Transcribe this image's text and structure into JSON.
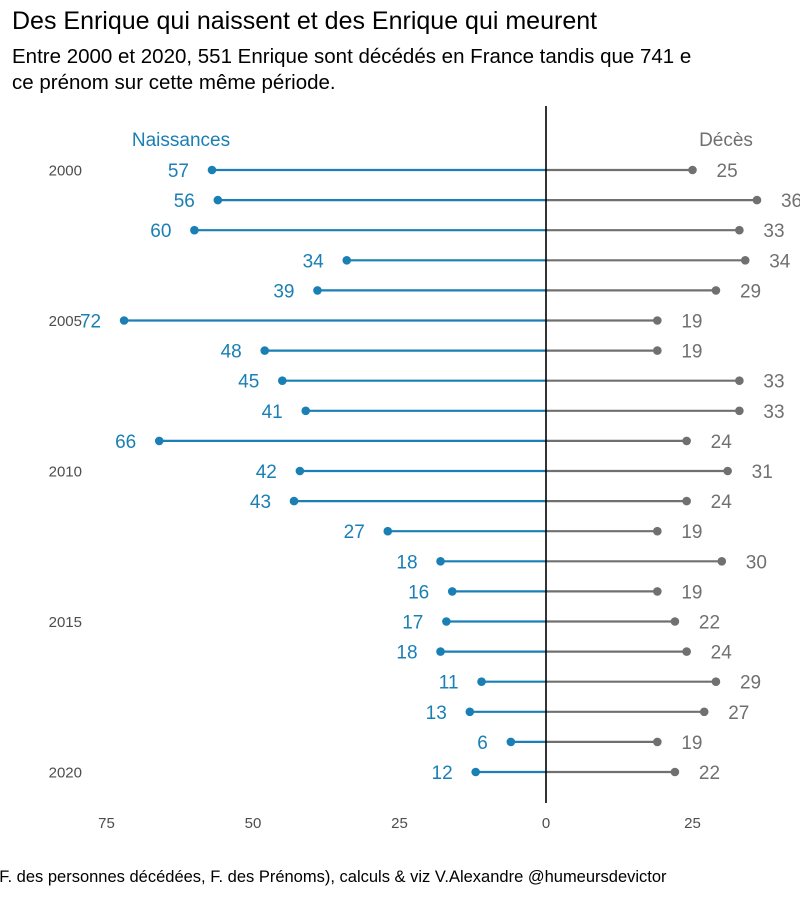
{
  "title": "Des Enrique qui naissent et des Enrique qui meurent",
  "subtitle": "Entre 2000 et 2020, 551 Enrique sont décédés en France tandis que 741 e\nce prénom sur cette même période.",
  "caption": "e (F. des personnes décédées, F. des Prénoms), calculs & viz V.Alexandre @humeursdevictor",
  "chart_data": {
    "type": "bar",
    "orientation": "horizontal-diverging-lollipop",
    "categories": [
      2000,
      2001,
      2002,
      2003,
      2004,
      2005,
      2006,
      2007,
      2008,
      2009,
      2010,
      2011,
      2012,
      2013,
      2014,
      2015,
      2016,
      2017,
      2018,
      2019,
      2020
    ],
    "series": [
      {
        "name": "Naissances",
        "color": "#1a7fb5",
        "side": "left",
        "values": [
          57,
          56,
          60,
          34,
          39,
          72,
          48,
          45,
          41,
          66,
          42,
          43,
          27,
          18,
          16,
          17,
          18,
          11,
          13,
          6,
          12
        ]
      },
      {
        "name": "Décès",
        "color": "#707070",
        "side": "right",
        "values": [
          25,
          36,
          33,
          34,
          29,
          19,
          19,
          33,
          33,
          24,
          31,
          24,
          19,
          30,
          19,
          22,
          24,
          29,
          27,
          19,
          22
        ]
      }
    ],
    "y_tick_labels": [
      "2000",
      "2005",
      "2010",
      "2015",
      "2020"
    ],
    "x_tick_labels": [
      "75",
      "50",
      "25",
      "0",
      "25"
    ],
    "x_tick_values": [
      -75,
      -50,
      -25,
      0,
      25
    ],
    "xlim": [
      -78,
      43
    ],
    "grid": false,
    "zero_line": true,
    "legend": "series names as text at top of each side"
  }
}
